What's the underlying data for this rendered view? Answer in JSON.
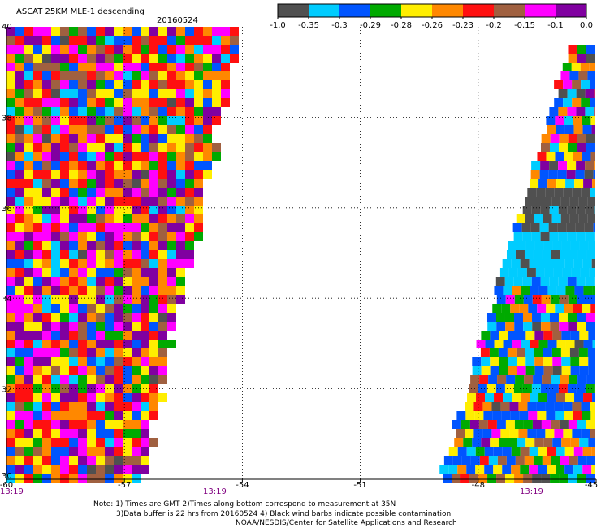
{
  "title": "ASCAT 25KM MLE-1 descending",
  "date": "20160524",
  "colorbar": {
    "colors": [
      "#505050",
      "#00ccff",
      "#0055ff",
      "#00aa00",
      "#ffee00",
      "#ff8800",
      "#ff1010",
      "#a06040",
      "#ff00ff",
      "#8000a0"
    ],
    "tick_labels": [
      "-1.0",
      "-0.35",
      "-0.3",
      "-0.29",
      "-0.28",
      "-0.26",
      "-0.23",
      "-0.2",
      "-0.15",
      "-0.1",
      "0.0"
    ]
  },
  "axes": {
    "lat_labels": [
      "40",
      "38",
      "36",
      "34",
      "32",
      "30"
    ],
    "lon_labels": [
      "-60",
      "-57",
      "-54",
      "-51",
      "-48",
      "-45"
    ],
    "lon_range": [
      -60,
      -45
    ],
    "lat_range": [
      30,
      40
    ]
  },
  "times": [
    "13:19",
    "13:19",
    "13:19"
  ],
  "notes": [
    "Note: 1) Times are GMT 2)Times along bottom correspond to measurement at 35N",
    "3)Data buffer is 22 hrs from 20160524 4) Black wind barbs indicate possible contamination",
    "NOAA/NESDIS/Center for Satellite Applications and Research"
  ]
}
